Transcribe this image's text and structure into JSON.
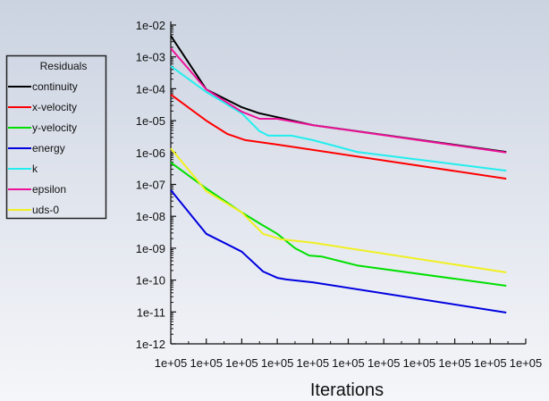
{
  "chart_data": {
    "type": "line",
    "title": "",
    "xlabel": "Iterations",
    "ylabel": "",
    "yscale": "log",
    "ylim_log10": [
      -12,
      -2
    ],
    "y_tick_labels": [
      "1e-02",
      "1e-03",
      "1e-04",
      "1e-05",
      "1e-06",
      "1e-07",
      "1e-08",
      "1e-09",
      "1e-10",
      "1e-11",
      "1e-12"
    ],
    "x_tick_labels": [
      "1e+05",
      "1e+05",
      "1e+05",
      "1e+05",
      "1e+05",
      "1e+05",
      "1e+05",
      "1e+05",
      "1e+05",
      "1e+05",
      "1e+05"
    ],
    "x_note": "x values expressed as position in tick-interval units (0 = first tick, 10 = last tick)",
    "xlim": [
      0,
      10
    ],
    "legend": {
      "title": "Residuals",
      "placement": "left"
    },
    "series": [
      {
        "name": "continuity",
        "color": "#000000",
        "x": [
          0,
          1,
          2,
          2.5,
          3,
          4,
          9.45
        ],
        "log10_y": [
          -2.34,
          -4.02,
          -4.58,
          -4.77,
          -4.89,
          -5.14,
          -5.98
        ]
      },
      {
        "name": "x-velocity",
        "color": "#ff0000",
        "x": [
          0,
          1,
          1.6,
          2.1,
          3,
          9.45
        ],
        "log10_y": [
          -4.18,
          -5.0,
          -5.42,
          -5.61,
          -5.75,
          -6.82
        ]
      },
      {
        "name": "y-velocity",
        "color": "#00e000",
        "x": [
          0,
          1,
          2,
          2.5,
          3,
          3.5,
          3.9,
          4.25,
          5.25,
          9.45
        ],
        "log10_y": [
          -6.31,
          -7.13,
          -7.88,
          -8.22,
          -8.55,
          -9.0,
          -9.23,
          -9.26,
          -9.54,
          -10.18
        ]
      },
      {
        "name": "energy",
        "color": "#0000e0",
        "x": [
          0,
          1,
          2,
          2.6,
          3,
          3.25,
          4,
          9.45
        ],
        "log10_y": [
          -7.18,
          -8.55,
          -9.11,
          -9.73,
          -9.93,
          -9.98,
          -10.07,
          -11.02
        ]
      },
      {
        "name": "k",
        "color": "#22eeee",
        "x": [
          0,
          1,
          2,
          2.5,
          2.75,
          3.4,
          4,
          5.25,
          9.45
        ],
        "log10_y": [
          -3.29,
          -4.1,
          -4.77,
          -5.33,
          -5.47,
          -5.47,
          -5.61,
          -5.98,
          -6.57
        ]
      },
      {
        "name": "epsilon",
        "color": "#ee1199",
        "x": [
          0,
          1,
          2,
          2.5,
          3,
          4,
          9.45
        ],
        "log10_y": [
          -2.73,
          -4.02,
          -4.72,
          -4.94,
          -4.94,
          -5.14,
          -6.0
        ]
      },
      {
        "name": "uds-0",
        "color": "#f0f020",
        "x": [
          0,
          1,
          2,
          2.6,
          3.1,
          4,
          9.45
        ],
        "log10_y": [
          -5.87,
          -7.21,
          -7.88,
          -8.55,
          -8.72,
          -8.83,
          -9.76
        ]
      }
    ]
  }
}
